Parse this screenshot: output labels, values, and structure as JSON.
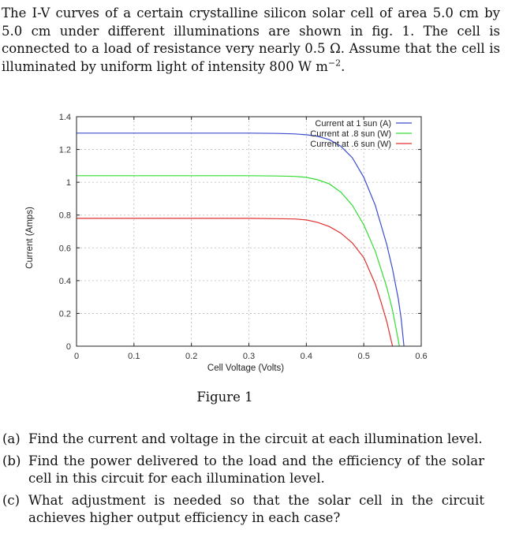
{
  "intro": {
    "text_before_sup": "The I-V curves of a certain crystalline silicon solar cell of area 5.0 cm by 5.0 cm under different illuminations are shown in fig. 1. The cell is connected to a load of resistance very nearly 0.5 Ω. Assume that the cell is illuminated by uniform light of intensity 800 W m",
    "superscript": "−2",
    "text_after_sup": "."
  },
  "figure_caption": "Figure 1",
  "questions": [
    {
      "tag": "(a)",
      "text": "Find the current and voltage in the circuit at each illumination level."
    },
    {
      "tag": "(b)",
      "text": "Find the power delivered to the load and the efficiency of the solar cell in this circuit for each illumination level."
    },
    {
      "tag": "(c)",
      "text": "What adjustment is needed so that the solar cell in the circuit achieves higher output efficiency in each case?"
    }
  ],
  "chart_data": {
    "type": "line",
    "xlabel": "Cell Voltage (Volts)",
    "ylabel": "Current (Amps)",
    "xlim": [
      0,
      0.6
    ],
    "ylim": [
      0,
      1.4
    ],
    "xticks": [
      "0",
      "0.1",
      "0.2",
      "0.3",
      "0.4",
      "0.5",
      "0.6"
    ],
    "yticks": [
      "0",
      "0.2",
      "0.4",
      "0.6",
      "0.8",
      "1",
      "1.2",
      "1.4"
    ],
    "grid": true,
    "legend_position": "top-right",
    "series": [
      {
        "name": "Current at 1 sun (A)",
        "color": "#3c4ccc",
        "x": [
          0,
          0.1,
          0.2,
          0.3,
          0.35,
          0.38,
          0.4,
          0.42,
          0.44,
          0.46,
          0.48,
          0.5,
          0.52,
          0.54,
          0.55,
          0.56,
          0.565,
          0.57
        ],
        "y": [
          1.3,
          1.3,
          1.3,
          1.3,
          1.298,
          1.295,
          1.29,
          1.28,
          1.26,
          1.22,
          1.15,
          1.03,
          0.86,
          0.62,
          0.47,
          0.29,
          0.17,
          0.0
        ]
      },
      {
        "name": "Current at .8 sun (W)",
        "color": "#33dd33",
        "x": [
          0,
          0.1,
          0.2,
          0.3,
          0.35,
          0.38,
          0.4,
          0.42,
          0.44,
          0.46,
          0.48,
          0.5,
          0.52,
          0.54,
          0.55,
          0.555,
          0.562
        ],
        "y": [
          1.04,
          1.04,
          1.04,
          1.04,
          1.038,
          1.036,
          1.03,
          1.015,
          0.99,
          0.94,
          0.86,
          0.74,
          0.58,
          0.36,
          0.22,
          0.13,
          0.0
        ]
      },
      {
        "name": "Current at .6 sun (W)",
        "color": "#e03030",
        "x": [
          0,
          0.1,
          0.2,
          0.3,
          0.35,
          0.38,
          0.4,
          0.42,
          0.44,
          0.46,
          0.48,
          0.5,
          0.52,
          0.53,
          0.54,
          0.55
        ],
        "y": [
          0.78,
          0.78,
          0.78,
          0.78,
          0.778,
          0.776,
          0.77,
          0.755,
          0.73,
          0.69,
          0.63,
          0.54,
          0.38,
          0.27,
          0.15,
          0.0
        ]
      }
    ]
  }
}
